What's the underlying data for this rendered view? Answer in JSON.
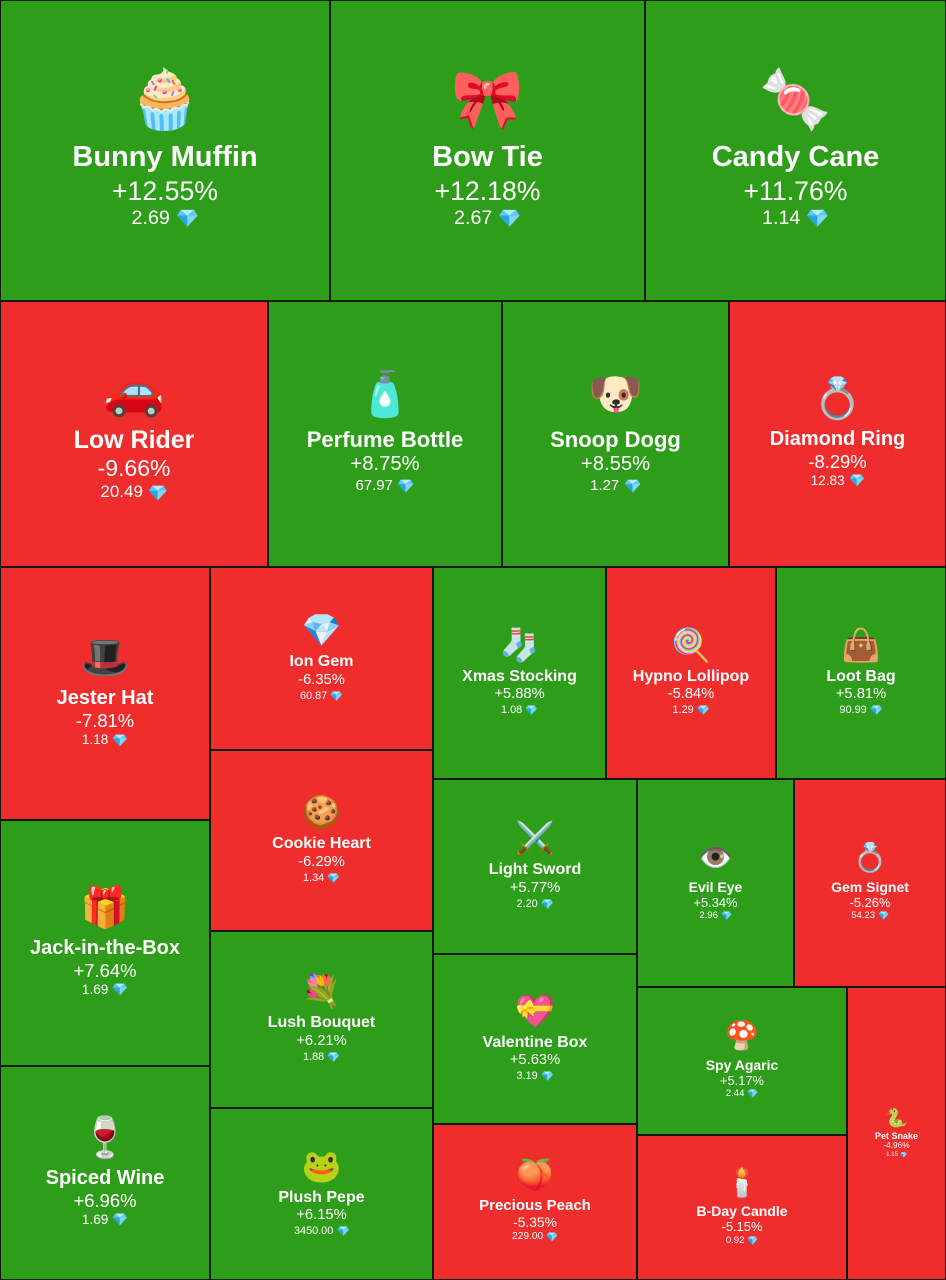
{
  "chart_data": {
    "type": "treemap",
    "colors": {
      "positive": "#2e9e1a",
      "negative": "#ef2d2d"
    },
    "currency_icon": "diamond-icon",
    "items": [
      {
        "name": "Bunny Muffin",
        "change": "+12.55%",
        "price": "2.69",
        "icon": "bunny-muffin-icon",
        "emoji": "🧁"
      },
      {
        "name": "Bow Tie",
        "change": "+12.18%",
        "price": "2.67",
        "icon": "bow-tie-icon",
        "emoji": "🎀"
      },
      {
        "name": "Candy Cane",
        "change": "+11.76%",
        "price": "1.14",
        "icon": "candy-cane-icon",
        "emoji": "🍬"
      },
      {
        "name": "Low Rider",
        "change": "-9.66%",
        "price": "20.49",
        "icon": "car-icon",
        "emoji": "🚗"
      },
      {
        "name": "Perfume Bottle",
        "change": "+8.75%",
        "price": "67.97",
        "icon": "perfume-icon",
        "emoji": "🧴"
      },
      {
        "name": "Snoop Dogg",
        "change": "+8.55%",
        "price": "1.27",
        "icon": "dog-icon",
        "emoji": "🐶"
      },
      {
        "name": "Diamond Ring",
        "change": "-8.29%",
        "price": "12.83",
        "icon": "ring-icon",
        "emoji": "💍"
      },
      {
        "name": "Jester Hat",
        "change": "-7.81%",
        "price": "1.18",
        "icon": "jester-hat-icon",
        "emoji": "🎩"
      },
      {
        "name": "Ion Gem",
        "change": "-6.35%",
        "price": "60.87",
        "icon": "gem-icon",
        "emoji": "💎"
      },
      {
        "name": "Xmas Stocking",
        "change": "+5.88%",
        "price": "1.08",
        "icon": "stocking-icon",
        "emoji": "🧦"
      },
      {
        "name": "Hypno Lollipop",
        "change": "-5.84%",
        "price": "1.29",
        "icon": "lollipop-icon",
        "emoji": "🍭"
      },
      {
        "name": "Loot Bag",
        "change": "+5.81%",
        "price": "90.99",
        "icon": "bag-icon",
        "emoji": "👜"
      },
      {
        "name": "Cookie Heart",
        "change": "-6.29%",
        "price": "1.34",
        "icon": "cookie-heart-icon",
        "emoji": "🍪"
      },
      {
        "name": "Light Sword",
        "change": "+5.77%",
        "price": "2.20",
        "icon": "sword-icon",
        "emoji": "⚔️"
      },
      {
        "name": "Evil Eye",
        "change": "+5.34%",
        "price": "2.96",
        "icon": "eye-icon",
        "emoji": "👁️"
      },
      {
        "name": "Gem Signet",
        "change": "-5.26%",
        "price": "54.23",
        "icon": "signet-ring-icon",
        "emoji": "💍"
      },
      {
        "name": "Jack-in-the-Box",
        "change": "+7.64%",
        "price": "1.69",
        "icon": "jack-in-the-box-icon",
        "emoji": "🎁"
      },
      {
        "name": "Lush Bouquet",
        "change": "+6.21%",
        "price": "1.88",
        "icon": "bouquet-icon",
        "emoji": "💐"
      },
      {
        "name": "Valentine Box",
        "change": "+5.63%",
        "price": "3.19",
        "icon": "heart-box-icon",
        "emoji": "💝"
      },
      {
        "name": "Spy Agaric",
        "change": "+5.17%",
        "price": "2.44",
        "icon": "mushroom-icon",
        "emoji": "🍄"
      },
      {
        "name": "Spiced Wine",
        "change": "+6.96%",
        "price": "1.69",
        "icon": "wine-icon",
        "emoji": "🍷"
      },
      {
        "name": "Plush Pepe",
        "change": "+6.15%",
        "price": "3450.00",
        "icon": "frog-icon",
        "emoji": "🐸"
      },
      {
        "name": "Precious Peach",
        "change": "-5.35%",
        "price": "229.00",
        "icon": "peach-icon",
        "emoji": "🍑"
      },
      {
        "name": "B-Day Candle",
        "change": "-5.15%",
        "price": "0.92",
        "icon": "candle-icon",
        "emoji": "🕯️"
      },
      {
        "name": "Pet Snake",
        "change": "-4.96%",
        "price": "1.15",
        "icon": "snake-icon",
        "emoji": "🐍"
      }
    ]
  }
}
